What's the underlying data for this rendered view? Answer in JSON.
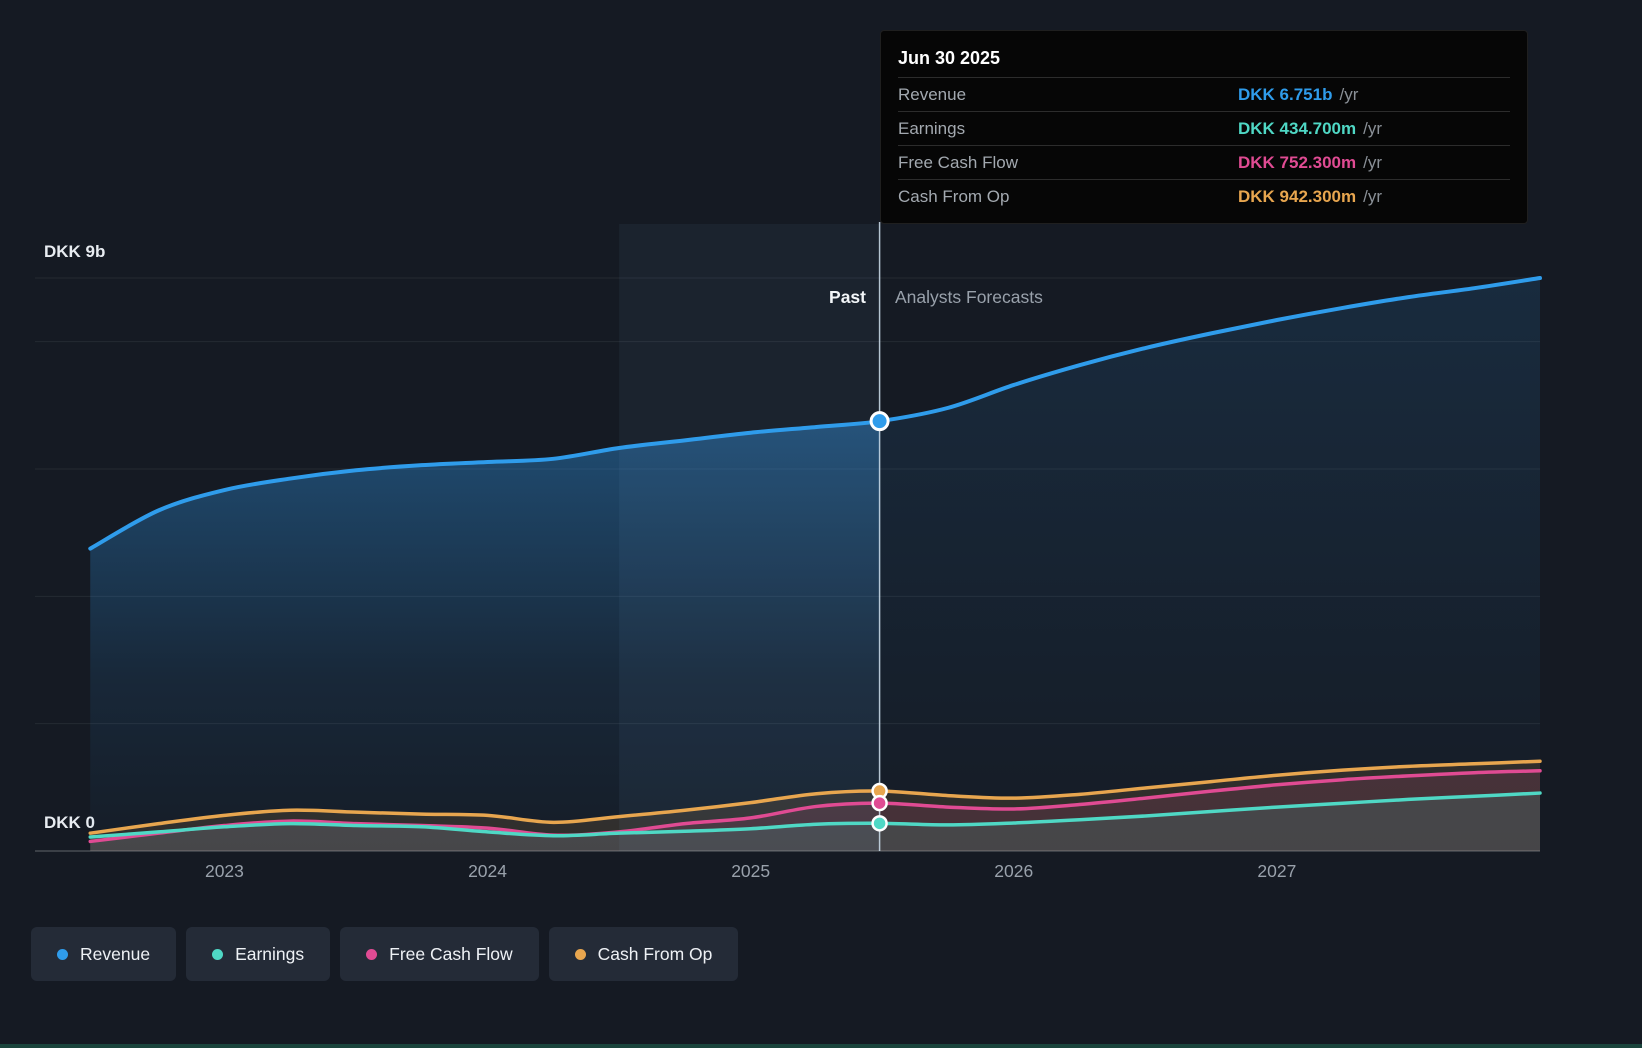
{
  "page": {
    "background": "#151a23"
  },
  "tooltip": {
    "date": "Jun 30 2025",
    "rows": [
      {
        "label": "Revenue",
        "value": "DKK 6.751b",
        "suffix": "/yr",
        "color": "#2f9ceb"
      },
      {
        "label": "Earnings",
        "value": "DKK 434.700m",
        "suffix": "/yr",
        "color": "#4fd8c5"
      },
      {
        "label": "Free Cash Flow",
        "value": "DKK 752.300m",
        "suffix": "/yr",
        "color": "#e04b93"
      },
      {
        "label": "Cash From Op",
        "value": "DKK 942.300m",
        "suffix": "/yr",
        "color": "#e8a64f"
      }
    ]
  },
  "axis": {
    "y_top_label": "DKK 9b",
    "y_bottom_label": "DKK 0",
    "x_labels": [
      "2023",
      "2024",
      "2025",
      "2026",
      "2027"
    ]
  },
  "divider": {
    "past_label": "Past",
    "forecast_label": "Analysts Forecasts"
  },
  "legend": {
    "items": [
      {
        "label": "Revenue",
        "color": "#2f9ceb"
      },
      {
        "label": "Earnings",
        "color": "#4fd8c5"
      },
      {
        "label": "Free Cash Flow",
        "color": "#e04b93"
      },
      {
        "label": "Cash From Op",
        "color": "#e8a64f"
      }
    ]
  },
  "chart_data": {
    "type": "area",
    "title": "Past and forecast Revenue, Earnings, Free Cash Flow and Cash From Op",
    "unit": "DKK millions per year",
    "x_domain": [
      2022.28,
      2028.0
    ],
    "y_domain": [
      0,
      9000
    ],
    "gridlines_y": [
      0,
      2000,
      4000,
      6000,
      8000,
      9000
    ],
    "x_ticks": [
      2023,
      2024,
      2025,
      2026,
      2027
    ],
    "divider_x": 2025.49,
    "highlight_band_x": [
      2024.5,
      2025.49
    ],
    "legend_position": "bottom",
    "x": [
      2022.49,
      2022.75,
      2023,
      2023.25,
      2023.5,
      2023.75,
      2024,
      2024.25,
      2024.5,
      2024.75,
      2025,
      2025.25,
      2025.49,
      2025.75,
      2026,
      2026.25,
      2026.5,
      2026.75,
      2027,
      2027.25,
      2027.5,
      2027.75,
      2028
    ],
    "series": [
      {
        "name": "Revenue",
        "color": "#2f9ceb",
        "values": [
          4750,
          5350,
          5670,
          5850,
          5980,
          6060,
          6110,
          6160,
          6330,
          6450,
          6570,
          6660,
          6751,
          6960,
          7320,
          7630,
          7900,
          8130,
          8340,
          8530,
          8700,
          8840,
          9000
        ]
      },
      {
        "name": "Cash From Op",
        "color": "#e8a64f",
        "values": [
          280,
          430,
          560,
          640,
          610,
          580,
          560,
          450,
          540,
          640,
          760,
          900,
          942.3,
          870,
          830,
          890,
          990,
          1090,
          1190,
          1270,
          1330,
          1370,
          1410
        ]
      },
      {
        "name": "Free Cash Flow",
        "color": "#e04b93",
        "values": [
          150,
          280,
          400,
          470,
          430,
          400,
          360,
          250,
          300,
          430,
          520,
          700,
          752.3,
          690,
          660,
          730,
          830,
          940,
          1040,
          1120,
          1180,
          1230,
          1260
        ]
      },
      {
        "name": "Earnings",
        "color": "#4fd8c5",
        "values": [
          220,
          300,
          380,
          430,
          400,
          380,
          300,
          240,
          280,
          310,
          350,
          420,
          434.7,
          410,
          440,
          490,
          550,
          620,
          690,
          750,
          810,
          860,
          910
        ]
      }
    ],
    "marker_values": {
      "Revenue": 6751,
      "Cash From Op": 942.3,
      "Free Cash Flow": 752.3,
      "Earnings": 434.7
    }
  }
}
